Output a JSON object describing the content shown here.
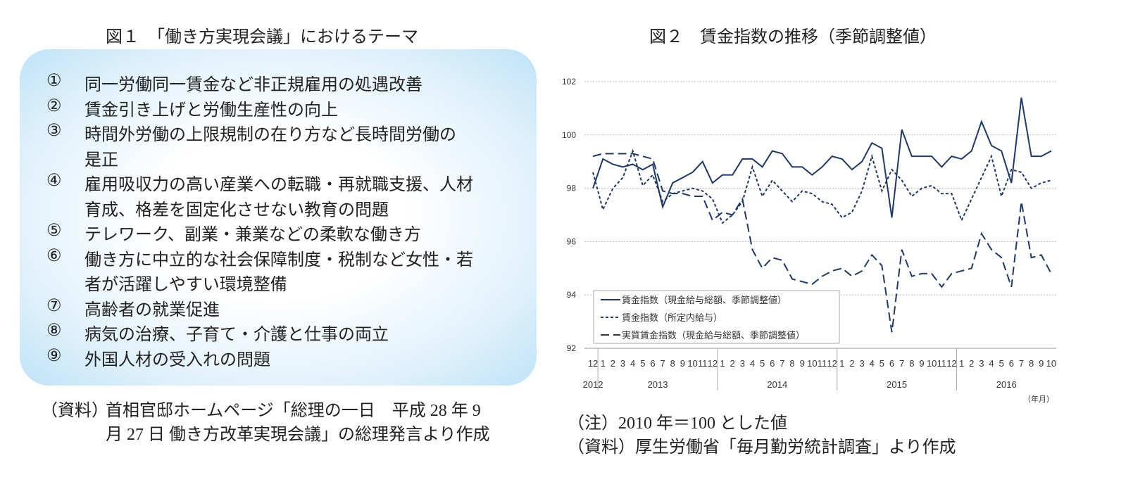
{
  "figure1": {
    "title": "図１　「働き方実現会議」におけるテーマ",
    "items": [
      {
        "num": "①",
        "lines": [
          "同一労働同一賃金など非正規雇用の処遇改善"
        ]
      },
      {
        "num": "②",
        "lines": [
          "賃金引き上げと労働生産性の向上"
        ]
      },
      {
        "num": "③",
        "lines": [
          "時間外労働の上限規制の在り方など長時間労働の",
          "是正"
        ]
      },
      {
        "num": "④",
        "lines": [
          "雇用吸収力の高い産業への転職・再就職支援、人材",
          "育成、格差を固定化させない教育の問題"
        ]
      },
      {
        "num": "⑤",
        "lines": [
          "テレワーク、副業・兼業などの柔軟な働き方"
        ]
      },
      {
        "num": "⑥",
        "lines": [
          "働き方に中立的な社会保障制度・税制など女性・若",
          "者が活躍しやすい環境整備"
        ]
      },
      {
        "num": "⑦",
        "lines": [
          "高齢者の就業促進"
        ]
      },
      {
        "num": "⑧",
        "lines": [
          "病気の治療、子育て・介護と仕事の両立"
        ]
      },
      {
        "num": "⑨",
        "lines": [
          "外国人材の受入れの問題"
        ]
      }
    ],
    "source_label": "（資料）",
    "source_lines": [
      "首相官邸ホームページ「総理の一日　平成 28 年 9",
      "月 27 日  働き方改革実現会議」の総理発言より作成"
    ]
  },
  "chart_data": {
    "type": "line",
    "title": "図２　賃金指数の推移（季節調整値）",
    "categories": [
      "12",
      "1",
      "2",
      "3",
      "4",
      "5",
      "6",
      "7",
      "8",
      "9",
      "10",
      "11",
      "12",
      "1",
      "2",
      "3",
      "4",
      "5",
      "6",
      "7",
      "8",
      "9",
      "10",
      "11",
      "12",
      "1",
      "2",
      "3",
      "4",
      "5",
      "6",
      "7",
      "8",
      "9",
      "10",
      "11",
      "12",
      "1",
      "2",
      "3",
      "4",
      "5",
      "6",
      "7",
      "8",
      "9",
      "10"
    ],
    "years": [
      "2012",
      "2013",
      "2014",
      "2015",
      "2016"
    ],
    "x_unit": "（年月）",
    "ylim": [
      92,
      102
    ],
    "yticks": [
      92,
      94,
      96,
      98,
      100,
      102
    ],
    "grid": true,
    "legend": "lower left",
    "series": [
      {
        "name": "賃金指数（現金給与総額、季節調整値）",
        "color": "#1f3864",
        "dash": "solid",
        "values": [
          98.0,
          99.1,
          98.9,
          98.8,
          98.9,
          98.7,
          98.9,
          97.3,
          98.2,
          98.4,
          98.6,
          99.0,
          98.2,
          98.5,
          98.5,
          99.1,
          99.1,
          98.8,
          99.4,
          99.3,
          98.8,
          98.8,
          98.5,
          98.8,
          99.2,
          99.1,
          98.7,
          99.0,
          99.7,
          99.5,
          96.9,
          100.2,
          99.2,
          99.2,
          99.2,
          98.8,
          99.2,
          99.1,
          99.4,
          100.5,
          99.6,
          99.4,
          98.2,
          101.4,
          99.2,
          99.2,
          99.4
        ]
      },
      {
        "name": "賃金指数（所定内給与）",
        "color": "#1f3864",
        "dash": "short",
        "values": [
          98.6,
          97.2,
          98.0,
          98.4,
          99.4,
          98.1,
          98.5,
          97.5,
          97.8,
          97.9,
          98.0,
          97.9,
          97.6,
          96.7,
          97.0,
          97.5,
          98.8,
          97.7,
          98.3,
          97.9,
          97.5,
          97.9,
          97.8,
          97.5,
          97.4,
          96.9,
          97.1,
          97.9,
          99.2,
          97.9,
          98.7,
          98.3,
          97.7,
          98.0,
          98.1,
          97.8,
          97.8,
          96.8,
          97.6,
          98.4,
          99.2,
          97.7,
          98.7,
          98.6,
          98.0,
          98.2,
          98.3
        ]
      },
      {
        "name": "実質賃金指数（現金給与総額、季節調整値）",
        "color": "#1f3864",
        "dash": "long",
        "values": [
          99.2,
          99.3,
          99.3,
          99.3,
          99.3,
          99.2,
          99.1,
          97.9,
          97.8,
          97.8,
          97.7,
          97.7,
          96.8,
          97.1,
          97.0,
          97.6,
          95.7,
          95.0,
          95.4,
          95.3,
          94.6,
          94.5,
          94.4,
          94.7,
          94.9,
          95.0,
          94.7,
          94.9,
          95.5,
          95.1,
          92.6,
          95.7,
          94.7,
          94.8,
          94.8,
          94.3,
          94.8,
          94.9,
          95.0,
          96.3,
          95.7,
          95.4,
          94.3,
          97.5,
          95.4,
          95.5,
          94.8
        ]
      }
    ],
    "notes": [
      "（注）2010 年＝100 とした値",
      "（資料）厚生労働省「毎月勤労統計調査」より作成"
    ]
  }
}
